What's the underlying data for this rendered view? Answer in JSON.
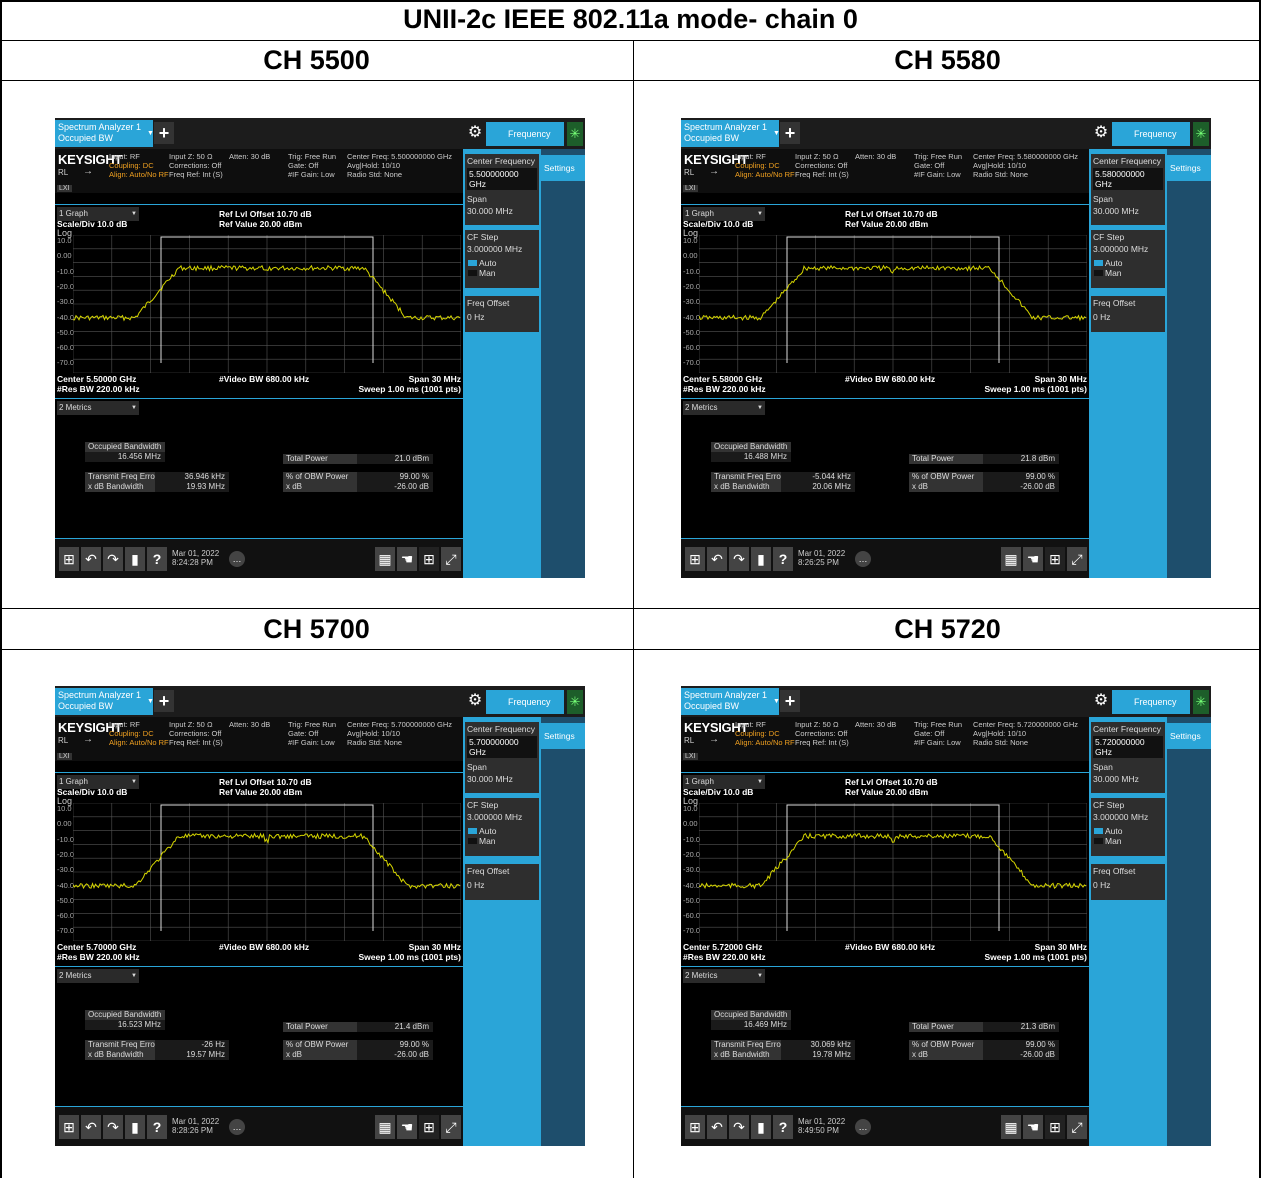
{
  "page": {
    "title": "UNII-2c IEEE 802.11a mode- chain 0"
  },
  "common": {
    "tab_line1": "Spectrum Analyzer 1",
    "tab_line2": "Occupied BW",
    "plus": "+",
    "frequency_tab": "Frequency",
    "logo": "KEYSIGHT",
    "rl": "RL",
    "lxi": "LXI",
    "input": "Input: RF",
    "coupling": "Coupling: DC",
    "align": "Align: Auto/No RF",
    "input_z": "Input Z: 50 Ω",
    "corrections": "Corrections: Off",
    "freq_ref": "Freq Ref: Int (S)",
    "atten": "Atten: 30 dB",
    "trig": "Trig: Free Run",
    "gate": "Gate: Off",
    "if_gain": "#IF Gain: Low",
    "avg_hold": "Avg|Hold: 10/10",
    "radio_std": "Radio Std: None",
    "graph_select": "1 Graph",
    "scale_div": "Scale/Div 10.0 dB",
    "log": "Log",
    "ref_offset": "Ref Lvl Offset 10.70 dB",
    "ref_value": "Ref Value 20.00 dBm",
    "y_ticks": [
      "10.0",
      "0.00",
      "-10.0",
      "-20.0",
      "-30.0",
      "-40.0",
      "-50.0",
      "-60.0",
      "-70.0"
    ],
    "video_bw": "#Video BW 680.00 kHz",
    "span_label": "Span 30 MHz",
    "res_bw": "#Res BW 220.00 kHz",
    "sweep": "Sweep 1.00 ms (1001 pts)",
    "metrics_select": "2 Metrics",
    "occ_bw_label": "Occupied Bandwidth",
    "total_power_label": "Total Power",
    "tx_freq_err_label": "Transmit Freq Error",
    "xdb_bw_label": "x dB Bandwidth",
    "obw_power_label": "% of OBW Power",
    "xdb_label": "x dB",
    "obw_power_value": "99.00 %",
    "xdb_value": "-26.00 dB",
    "panel_center_freq": "Center Frequency",
    "panel_span": "Span",
    "panel_span_value": "30.000 MHz",
    "panel_cf_step": "CF Step",
    "panel_cf_step_value": "3.000000 MHz",
    "panel_auto": "Auto",
    "panel_man": "Man",
    "panel_freq_offset": "Freq Offset",
    "panel_freq_offset_value": "0 Hz",
    "settings": "Settings",
    "date": "Mar 01, 2022",
    "trace_color": "#d4d400",
    "accent_color": "#2aa5d8"
  },
  "cells": [
    {
      "channel": "CH 5500",
      "center_freq": "Center Freq: 5.500000000 GHz",
      "center_label": "Center 5.50000 GHz",
      "panel_center_value": "5.500000000 GHz",
      "occ_bw_value": "16.456 MHz",
      "total_power_value": "21.0 dBm",
      "tx_freq_err_value": "36.946 kHz",
      "xdb_bw_value": "19.93 MHz",
      "time": "8:24:28 PM"
    },
    {
      "channel": "CH 5580",
      "center_freq": "Center Freq: 5.580000000 GHz",
      "center_label": "Center 5.58000 GHz",
      "panel_center_value": "5.580000000 GHz",
      "occ_bw_value": "16.488 MHz",
      "total_power_value": "21.8 dBm",
      "tx_freq_err_value": "-5.044 kHz",
      "xdb_bw_value": "20.06 MHz",
      "time": "8:26:25 PM"
    },
    {
      "channel": "CH 5700",
      "center_freq": "Center Freq: 5.700000000 GHz",
      "center_label": "Center 5.70000 GHz",
      "panel_center_value": "5.700000000 GHz",
      "occ_bw_value": "16.523 MHz",
      "total_power_value": "21.4 dBm",
      "tx_freq_err_value": "-26 Hz",
      "xdb_bw_value": "19.57 MHz",
      "time": "8:28:26 PM"
    },
    {
      "channel": "CH 5720",
      "center_freq": "Center Freq: 5.720000000 GHz",
      "center_label": "Center 5.72000 GHz",
      "panel_center_value": "5.720000000 GHz",
      "occ_bw_value": "16.469 MHz",
      "total_power_value": "21.3 dBm",
      "tx_freq_err_value": "30.069 kHz",
      "xdb_bw_value": "19.78 MHz",
      "time": "8:49:50 PM"
    }
  ]
}
